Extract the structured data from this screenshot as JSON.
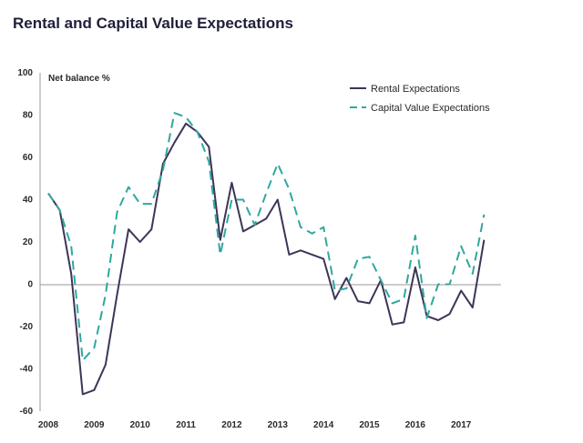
{
  "chart_data": {
    "type": "line",
    "title": "Rental and Capital Value Expectations",
    "ylabel": "Net balance %",
    "xlabel": "",
    "ylim": [
      -60,
      100
    ],
    "yticks": [
      -60,
      -40,
      -20,
      0,
      20,
      40,
      60,
      80,
      100
    ],
    "xlim": [
      2008,
      2017.75
    ],
    "xticks": [
      "2008",
      "2009",
      "2010",
      "2011",
      "2012",
      "2013",
      "2014",
      "2015",
      "2016",
      "2017"
    ],
    "grid": false,
    "zero_line": true,
    "legend_position": "top-right",
    "x": [
      2008.0,
      2008.25,
      2008.5,
      2008.75,
      2009.0,
      2009.25,
      2009.5,
      2009.75,
      2010.0,
      2010.25,
      2010.5,
      2010.75,
      2011.0,
      2011.25,
      2011.5,
      2011.75,
      2012.0,
      2012.25,
      2012.5,
      2012.75,
      2013.0,
      2013.25,
      2013.5,
      2013.75,
      2014.0,
      2014.25,
      2014.5,
      2014.75,
      2015.0,
      2015.25,
      2015.5,
      2015.75,
      2016.0,
      2016.25,
      2016.5,
      2016.75,
      2017.0,
      2017.25,
      2017.5
    ],
    "series": [
      {
        "name": "Rental Expectations",
        "color": "#3d3556",
        "dash": "solid",
        "values": [
          43,
          35,
          5,
          -52,
          -50,
          -38,
          -5,
          26,
          20,
          26,
          57,
          67,
          76,
          72,
          65,
          21,
          48,
          25,
          28,
          31,
          40,
          14,
          16,
          14,
          12,
          -7,
          3,
          -8,
          -9,
          2,
          -19,
          -18,
          8,
          -15,
          -17,
          -14,
          -3,
          -11,
          21
        ]
      },
      {
        "name": "Capital Value Expectations",
        "color": "#2fa89e",
        "dash": "dashed",
        "values": [
          43,
          35,
          18,
          -36,
          -30,
          -5,
          34,
          46,
          38,
          38,
          54,
          81,
          79,
          72,
          58,
          14,
          40,
          40,
          28,
          43,
          57,
          45,
          27,
          24,
          27,
          -3,
          -2,
          12,
          13,
          2,
          -9,
          -7,
          23,
          -16,
          0,
          0,
          18,
          5,
          33
        ]
      }
    ]
  }
}
